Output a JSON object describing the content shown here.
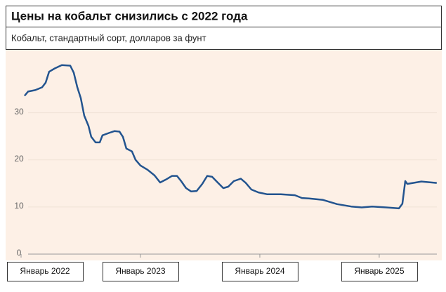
{
  "chart_data": {
    "type": "line",
    "title": "Цены на кобальт снизились с 2022 года",
    "subtitle": "Кобальт, стандартный сорт, долларов за фунт",
    "x": [
      2022.029,
      2022.059,
      2022.118,
      2022.176,
      2022.206,
      2022.235,
      2022.282,
      2022.341,
      2022.412,
      2022.441,
      2022.471,
      2022.5,
      2022.529,
      2022.565,
      2022.588,
      2022.624,
      2022.659,
      2022.682,
      2022.735,
      2022.782,
      2022.824,
      2022.853,
      2022.882,
      2022.929,
      2022.959,
      2023.0,
      2023.059,
      2023.118,
      2023.165,
      2023.212,
      2023.265,
      2023.306,
      2023.341,
      2023.382,
      2023.424,
      2023.471,
      2023.518,
      2023.559,
      2023.6,
      2023.647,
      2023.694,
      2023.735,
      2023.782,
      2023.841,
      2023.882,
      2023.929,
      2023.988,
      2024.059,
      2024.176,
      2024.294,
      2024.353,
      2024.412,
      2024.529,
      2024.647,
      2024.765,
      2024.853,
      2024.941,
      2025.059,
      2025.165,
      2025.194,
      2025.218,
      2025.235,
      2025.353,
      2025.482
    ],
    "series": [
      {
        "color": "#23548f",
        "values": [
          33.6,
          34.5,
          34.8,
          35.4,
          36.4,
          38.7,
          39.4,
          40.1,
          40.0,
          38.5,
          35.4,
          33.1,
          29.4,
          27.2,
          24.9,
          23.7,
          23.7,
          25.2,
          25.7,
          26.1,
          26.0,
          24.9,
          22.4,
          21.8,
          20.0,
          18.8,
          17.9,
          16.7,
          15.2,
          15.8,
          16.6,
          16.6,
          15.5,
          14.0,
          13.3,
          13.4,
          14.9,
          16.6,
          16.4,
          15.2,
          14.0,
          14.3,
          15.5,
          16.0,
          15.1,
          13.7,
          13.1,
          12.7,
          12.7,
          12.5,
          11.9,
          11.8,
          11.5,
          10.6,
          10.1,
          9.9,
          10.1,
          9.9,
          9.7,
          10.7,
          15.5,
          14.9,
          15.4,
          15.1
        ]
      }
    ],
    "xlim": [
      2022,
      2025.53
    ],
    "xticks": [
      {
        "value": 2022,
        "label": "Январь 2022"
      },
      {
        "value": 2023,
        "label": "Январь 2023"
      },
      {
        "value": 2024,
        "label": "Январь 2024"
      },
      {
        "value": 2025,
        "label": "Январь 2025"
      }
    ],
    "ylim": [
      0,
      43.5
    ],
    "yticks": [
      0,
      10,
      20,
      30
    ],
    "grid": true
  }
}
